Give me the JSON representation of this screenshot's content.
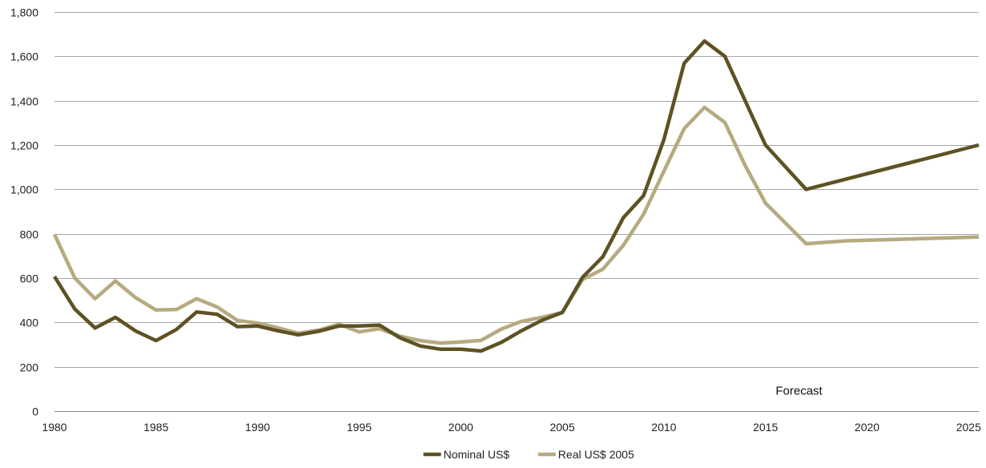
{
  "chart_data": {
    "type": "line",
    "title": "",
    "xlabel": "",
    "ylabel": "",
    "xlim": [
      1980,
      2025.5
    ],
    "ylim": [
      0,
      1800
    ],
    "grid": "horizontal",
    "legend_position": "bottom-center",
    "x_ticks": [
      {
        "value": 1980,
        "label": "1980"
      },
      {
        "value": 1985,
        "label": "1985"
      },
      {
        "value": 1990,
        "label": "1990"
      },
      {
        "value": 1995,
        "label": "1995"
      },
      {
        "value": 2000,
        "label": "2000"
      },
      {
        "value": 2005,
        "label": "2005"
      },
      {
        "value": 2010,
        "label": "2010"
      },
      {
        "value": 2015,
        "label": "2015"
      },
      {
        "value": 2020,
        "label": "2020"
      },
      {
        "value": 2025,
        "label": "2025"
      }
    ],
    "y_ticks": [
      {
        "value": 0,
        "label": "0"
      },
      {
        "value": 200,
        "label": "200"
      },
      {
        "value": 400,
        "label": "400"
      },
      {
        "value": 600,
        "label": "600"
      },
      {
        "value": 800,
        "label": "800"
      },
      {
        "value": 1000,
        "label": "1,000"
      },
      {
        "value": 1200,
        "label": "1,200"
      },
      {
        "value": 1400,
        "label": "1,400"
      },
      {
        "value": 1600,
        "label": "1,600"
      },
      {
        "value": 1800,
        "label": "1,800"
      }
    ],
    "annotations": [
      {
        "text": "Forecast",
        "x": 2015.5,
        "y": 75
      }
    ],
    "series": [
      {
        "name": "Nominal US$",
        "color": "#5e5224",
        "points": [
          [
            1980,
            607
          ],
          [
            1981,
            460
          ],
          [
            1982,
            375
          ],
          [
            1983,
            423
          ],
          [
            1984,
            361
          ],
          [
            1985,
            318
          ],
          [
            1986,
            368
          ],
          [
            1987,
            447
          ],
          [
            1988,
            437
          ],
          [
            1989,
            381
          ],
          [
            1990,
            384
          ],
          [
            1991,
            362
          ],
          [
            1992,
            344
          ],
          [
            1993,
            360
          ],
          [
            1994,
            384
          ],
          [
            1995,
            384
          ],
          [
            1996,
            388
          ],
          [
            1997,
            331
          ],
          [
            1998,
            294
          ],
          [
            1999,
            279
          ],
          [
            2000,
            279
          ],
          [
            2001,
            271
          ],
          [
            2002,
            310
          ],
          [
            2003,
            363
          ],
          [
            2004,
            410
          ],
          [
            2005,
            445
          ],
          [
            2006,
            604
          ],
          [
            2007,
            697
          ],
          [
            2008,
            872
          ],
          [
            2009,
            972
          ],
          [
            2010,
            1225
          ],
          [
            2011,
            1569
          ],
          [
            2012,
            1669
          ],
          [
            2013,
            1600
          ],
          [
            2014,
            1400
          ],
          [
            2015,
            1200
          ],
          [
            2017,
            1000
          ],
          [
            2025.5,
            1200
          ]
        ]
      },
      {
        "name": "Real US$ 2005",
        "color": "#b5aa80",
        "points": [
          [
            1980,
            797
          ],
          [
            1981,
            600
          ],
          [
            1982,
            507
          ],
          [
            1983,
            587
          ],
          [
            1984,
            511
          ],
          [
            1985,
            456
          ],
          [
            1986,
            458
          ],
          [
            1987,
            507
          ],
          [
            1988,
            470
          ],
          [
            1989,
            409
          ],
          [
            1990,
            397
          ],
          [
            1991,
            376
          ],
          [
            1992,
            351
          ],
          [
            1993,
            365
          ],
          [
            1994,
            392
          ],
          [
            1995,
            357
          ],
          [
            1996,
            372
          ],
          [
            1997,
            338
          ],
          [
            1998,
            318
          ],
          [
            1999,
            307
          ],
          [
            2000,
            312
          ],
          [
            2001,
            319
          ],
          [
            2002,
            370
          ],
          [
            2003,
            405
          ],
          [
            2004,
            423
          ],
          [
            2005,
            445
          ],
          [
            2006,
            594
          ],
          [
            2007,
            641
          ],
          [
            2008,
            748
          ],
          [
            2009,
            888
          ],
          [
            2010,
            1082
          ],
          [
            2011,
            1274
          ],
          [
            2012,
            1370
          ],
          [
            2013,
            1302
          ],
          [
            2014,
            1108
          ],
          [
            2015,
            938
          ],
          [
            2017,
            755
          ],
          [
            2019,
            768
          ],
          [
            2025.5,
            785
          ]
        ]
      }
    ]
  }
}
